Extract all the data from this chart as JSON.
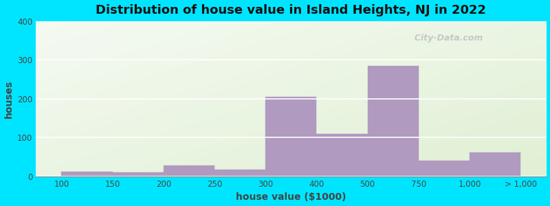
{
  "title": "Distribution of house value in Island Heights, NJ in 2022",
  "xlabel": "house value ($1000)",
  "ylabel": "houses",
  "bar_color": "#b09ac0",
  "background_outer": "#00e5ff",
  "ylim": [
    0,
    400
  ],
  "yticks": [
    0,
    100,
    200,
    300,
    400
  ],
  "bar_labels": [
    "100",
    "150",
    "200",
    "250",
    "300",
    "400",
    "500",
    "750",
    "1,000",
    "> 1,000"
  ],
  "bar_heights": [
    12,
    10,
    28,
    18,
    205,
    110,
    285,
    40,
    62
  ],
  "watermark": "  City-Data.com"
}
